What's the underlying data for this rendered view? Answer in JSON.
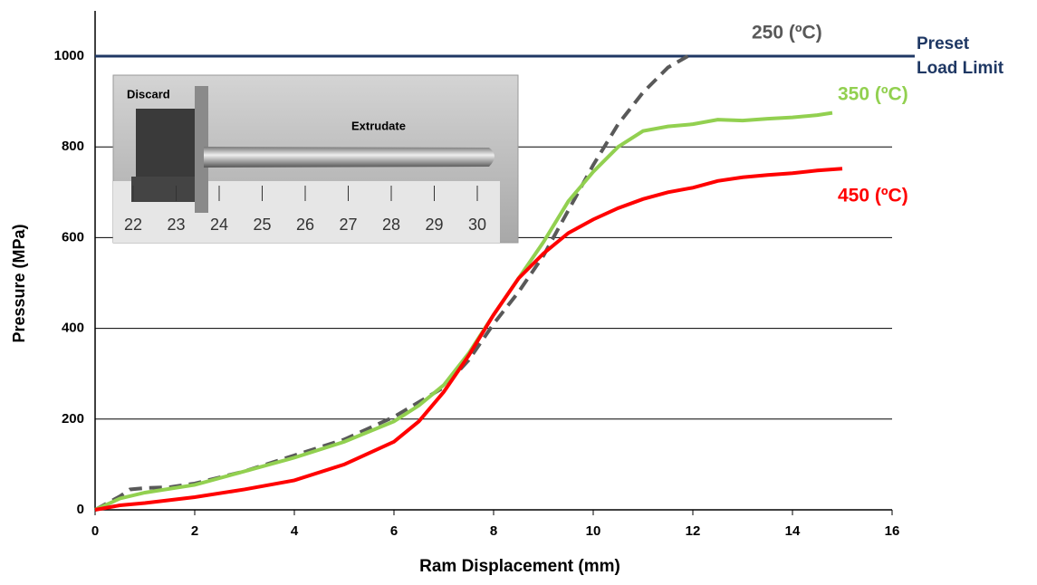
{
  "chart_data": {
    "type": "line",
    "xlabel": "Ram Displacement (mm)",
    "ylabel": "Pressure (MPa)",
    "xlim": [
      0,
      16
    ],
    "xticks": [
      0,
      2,
      4,
      6,
      8,
      10,
      12,
      14,
      16
    ],
    "ylim": [
      0,
      1000
    ],
    "yticks": [
      0,
      200,
      400,
      600,
      800,
      1000
    ],
    "grid": true,
    "series": [
      {
        "name": "250 (ºC)",
        "color": "#595959",
        "dashed": true,
        "x": [
          0,
          0.5,
          0.7,
          1,
          1.5,
          2,
          3,
          4,
          5,
          6,
          7,
          7.5,
          8,
          8.5,
          9,
          9.5,
          10,
          10.5,
          11,
          11.5,
          11.9
        ],
        "values": [
          0,
          30,
          45,
          48,
          50,
          58,
          85,
          120,
          155,
          205,
          270,
          330,
          410,
          480,
          560,
          660,
          760,
          850,
          920,
          975,
          1000
        ]
      },
      {
        "name": "350 (ºC)",
        "color": "#92d050",
        "dashed": false,
        "x": [
          0,
          0.5,
          1,
          2,
          3,
          4,
          5,
          6,
          6.5,
          7,
          7.5,
          8,
          8.5,
          9,
          9.5,
          10,
          10.5,
          11,
          11.5,
          12,
          12.5,
          13,
          13.5,
          14,
          14.5,
          14.8
        ],
        "values": [
          0,
          25,
          38,
          55,
          85,
          115,
          150,
          195,
          230,
          275,
          345,
          430,
          510,
          590,
          680,
          745,
          800,
          835,
          845,
          850,
          860,
          858,
          862,
          865,
          870,
          875
        ]
      },
      {
        "name": "450 (ºC)",
        "color": "#ff0000",
        "dashed": false,
        "x": [
          0,
          0.5,
          1,
          2,
          3,
          4,
          5,
          6,
          6.5,
          7,
          7.5,
          8,
          8.5,
          9,
          9.5,
          10,
          10.5,
          11,
          11.5,
          12,
          12.5,
          13,
          13.5,
          14,
          14.5,
          15
        ],
        "values": [
          0,
          10,
          15,
          28,
          45,
          65,
          100,
          150,
          195,
          260,
          340,
          430,
          510,
          565,
          610,
          640,
          665,
          685,
          700,
          710,
          725,
          733,
          738,
          742,
          748,
          752
        ]
      }
    ],
    "reference_line": {
      "value": 1000,
      "color": "#1f3864",
      "label_lines": [
        "Preset",
        "Load Limit"
      ]
    },
    "inset": {
      "labels": [
        "Discard",
        "Extrudate"
      ],
      "ruler": [
        22,
        23,
        24,
        25,
        26,
        27,
        28,
        29,
        30
      ]
    }
  }
}
